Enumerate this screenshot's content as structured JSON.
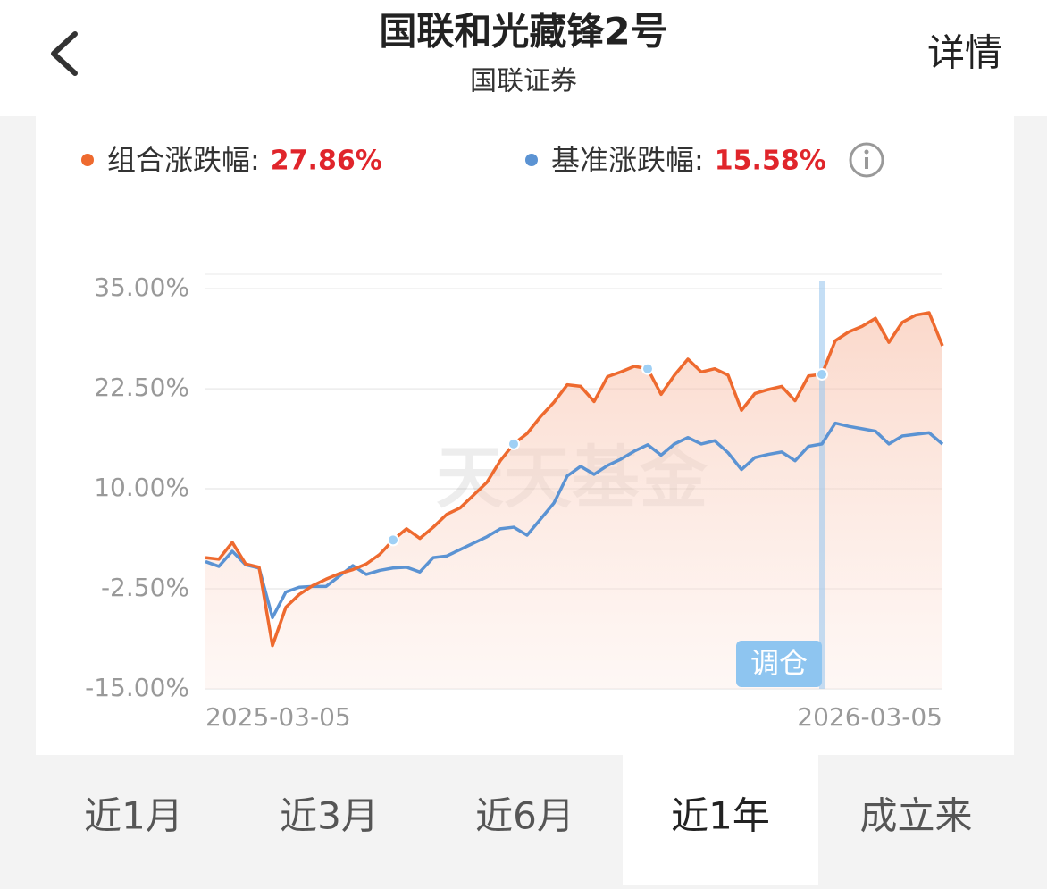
{
  "header": {
    "title": "国联和光藏锋2号",
    "subtitle": "国联证券",
    "action": "详情"
  },
  "chart_data": {
    "type": "line",
    "watermark": "天天基金",
    "categories": [
      "2025-03-05",
      null,
      null,
      null,
      null,
      null,
      null,
      null,
      null,
      null,
      null,
      null,
      null,
      null,
      null,
      null,
      null,
      null,
      null,
      null,
      null,
      null,
      null,
      null,
      null,
      null,
      null,
      null,
      null,
      null,
      null,
      null,
      null,
      null,
      null,
      null,
      null,
      null,
      null,
      null,
      null,
      null,
      null,
      null,
      null,
      null,
      null,
      null,
      null,
      null,
      null,
      null,
      null,
      null,
      null,
      "2026-03-05"
    ],
    "series": [
      {
        "name": "组合涨跌幅:",
        "total_change": "27.86%",
        "color": "#ee6a2f",
        "values": [
          1.4,
          1.2,
          3.3,
          0.6,
          0.2,
          -9.6,
          -4.8,
          -3.2,
          -2.1,
          -1.3,
          -0.6,
          -0.1,
          0.6,
          1.8,
          3.6,
          5.0,
          3.8,
          5.2,
          6.8,
          7.6,
          9.2,
          10.8,
          13.5,
          15.6,
          16.9,
          19.0,
          20.8,
          23.0,
          22.8,
          20.9,
          24.0,
          24.6,
          25.3,
          25.0,
          21.8,
          24.2,
          26.2,
          24.6,
          25.0,
          24.2,
          19.8,
          21.9,
          22.4,
          22.8,
          21.0,
          24.1,
          24.3,
          28.5,
          29.6,
          30.3,
          31.3,
          28.3,
          30.8,
          31.7,
          32.0,
          27.86
        ]
      },
      {
        "name": "基准涨跌幅:",
        "total_change": "15.58%",
        "color": "#5b93d3",
        "values": [
          0.9,
          0.3,
          2.2,
          0.5,
          0.1,
          -6.1,
          -2.9,
          -2.3,
          -2.2,
          -2.2,
          -0.9,
          0.4,
          -0.7,
          -0.2,
          0.1,
          0.2,
          -0.4,
          1.4,
          1.6,
          2.4,
          3.2,
          4.0,
          5.0,
          5.2,
          4.2,
          6.2,
          8.2,
          11.6,
          12.8,
          11.8,
          12.9,
          13.7,
          14.7,
          15.5,
          14.2,
          15.6,
          16.4,
          15.6,
          16.0,
          14.5,
          12.4,
          13.9,
          14.3,
          14.6,
          13.5,
          15.3,
          15.6,
          18.2,
          17.8,
          17.5,
          17.2,
          15.6,
          16.6,
          16.8,
          17.0,
          15.58
        ]
      }
    ],
    "rebalance": {
      "label": "调仓",
      "indices": [
        14,
        23,
        33,
        46
      ],
      "highlight": 46
    },
    "ylim": [
      -15,
      36.8
    ],
    "yticks": [
      {
        "value": -15,
        "label": "-15.00%"
      },
      {
        "value": -2.5,
        "label": "-2.50%"
      },
      {
        "value": 10,
        "label": "10.00%"
      },
      {
        "value": 22.5,
        "label": "22.50%"
      },
      {
        "value": 35,
        "label": "35.00%"
      }
    ],
    "grid": true
  },
  "tabs": {
    "items": [
      "近1月",
      "近3月",
      "近6月",
      "近1年",
      "成立来"
    ],
    "selected": 3
  }
}
